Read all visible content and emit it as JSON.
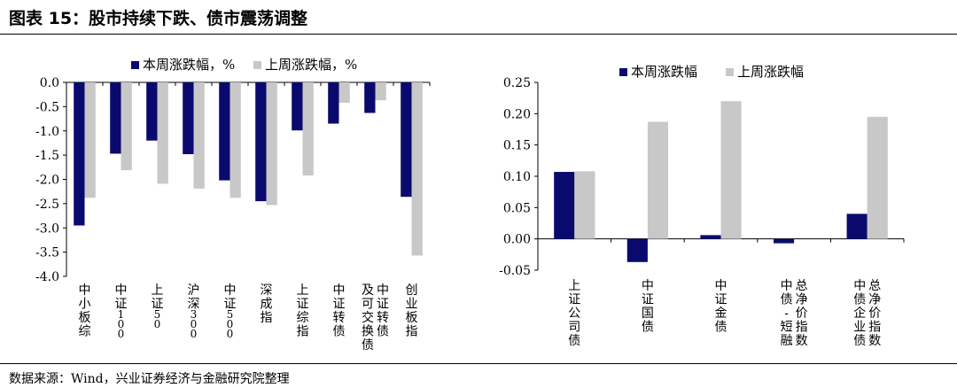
{
  "figure": {
    "title": "图表 15：股市持续下跌、债市震荡调整",
    "source": "数据来源：Wind，兴业证券经济与金融研究院整理"
  },
  "colors": {
    "this_week": "#0a0a6e",
    "last_week": "#c8c8c8"
  },
  "chart_data": [
    {
      "type": "bar",
      "title": "",
      "xlabel": "",
      "ylabel": "",
      "ylim": [
        -4.0,
        0.0
      ],
      "yticks": [
        "0.0",
        "-0.5",
        "-1.0",
        "-1.5",
        "-2.0",
        "-2.5",
        "-3.0",
        "-3.5",
        "-4.0"
      ],
      "categories": [
        "中小板综",
        "中证100",
        "上证50",
        "沪深300",
        "中证500",
        "深成指",
        "上证综指",
        "中证转债",
        [
          "及可交换债",
          "中证转债"
        ],
        "创业板指"
      ],
      "series": [
        {
          "name": "本周涨跌幅，%",
          "values": [
            -2.95,
            -1.47,
            -1.2,
            -1.48,
            -2.02,
            -2.45,
            -0.99,
            -0.85,
            -0.63,
            -2.36
          ]
        },
        {
          "name": "上周涨跌幅，%",
          "values": [
            -2.38,
            -1.81,
            -2.09,
            -2.19,
            -2.38,
            -2.53,
            -1.92,
            -0.42,
            -0.37,
            -3.57
          ]
        }
      ],
      "legend": "top"
    },
    {
      "type": "bar",
      "title": "",
      "xlabel": "",
      "ylabel": "",
      "ylim": [
        -0.05,
        0.25
      ],
      "yticks": [
        "0.25",
        "0.20",
        "0.15",
        "0.10",
        "0.05",
        "0.00",
        "-0.05"
      ],
      "categories": [
        "上证公司债",
        "中证国债",
        "中证金债",
        [
          "中债-短融",
          "总净价指数"
        ],
        [
          "中债企业债",
          "总净价指数"
        ]
      ],
      "series": [
        {
          "name": "本周涨跌幅",
          "values": [
            0.107,
            -0.037,
            0.006,
            -0.007,
            0.04
          ]
        },
        {
          "name": "上周涨跌幅",
          "values": [
            0.108,
            0.187,
            0.22,
            0.0,
            0.195
          ]
        }
      ],
      "legend": "top"
    }
  ]
}
